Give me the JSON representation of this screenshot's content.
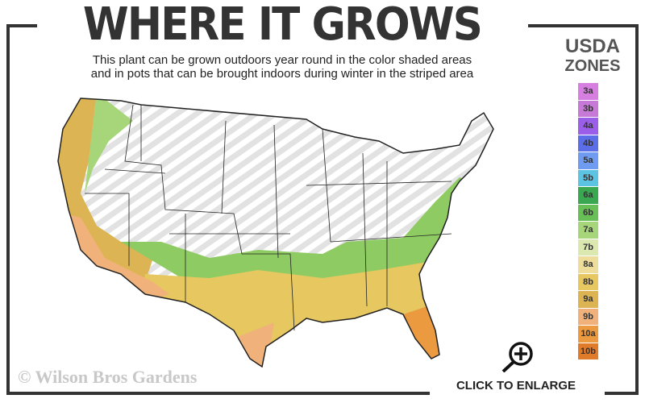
{
  "header": {
    "title": "WHERE IT GROWS",
    "subtitle_line1": "This plant can be grown outdoors year round in the color shaded areas",
    "subtitle_line2": "and in pots that can be brought indoors during winter in the striped area"
  },
  "legend": {
    "title_line1": "USDA",
    "title_line2": "ZONES",
    "zones": [
      {
        "label": "3a",
        "color": "#d67fe0"
      },
      {
        "label": "3b",
        "color": "#c679d6"
      },
      {
        "label": "4a",
        "color": "#9b5ee8"
      },
      {
        "label": "4b",
        "color": "#5b6ee8"
      },
      {
        "label": "5a",
        "color": "#6f9cf0"
      },
      {
        "label": "5b",
        "color": "#5cc3e3"
      },
      {
        "label": "6a",
        "color": "#3aa850"
      },
      {
        "label": "6b",
        "color": "#67bf56"
      },
      {
        "label": "7a",
        "color": "#a6d57a"
      },
      {
        "label": "7b",
        "color": "#dbe9b0"
      },
      {
        "label": "8a",
        "color": "#eddc9a"
      },
      {
        "label": "8b",
        "color": "#e6c760"
      },
      {
        "label": "9a",
        "color": "#dcb454"
      },
      {
        "label": "9b",
        "color": "#f0b27a"
      },
      {
        "label": "10a",
        "color": "#ec9a40"
      },
      {
        "label": "10b",
        "color": "#e07b2a"
      }
    ]
  },
  "footer": {
    "copyright": "© Wilson Bros Gardens",
    "enlarge_label": "CLICK TO ENLARGE"
  },
  "icons": {
    "enlarge": "magnifier-plus-icon"
  }
}
